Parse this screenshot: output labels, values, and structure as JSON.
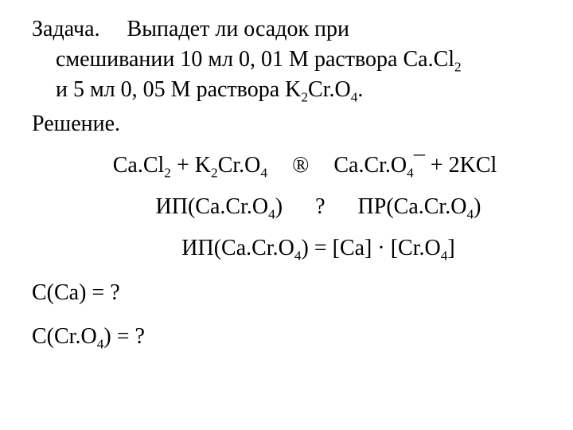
{
  "typography": {
    "font_family": "Times New Roman",
    "base_fontsize_pt": 21,
    "text_color": "#000000",
    "background_color": "#ffffff"
  },
  "problem": {
    "label": "Задача.",
    "line1_after_label": "Выпадет ли осадок при",
    "line2_a": "смешивании 10 мл 0, 01 М раствора Ca.Cl",
    "line2_sub": "2",
    "line3_a": "и 5 мл 0, 05 М раствора K",
    "line3_sub1": "2",
    "line3_b": "Cr.O",
    "line3_sub2": "4",
    "line3_c": "."
  },
  "solution_label": "Решение.",
  "eq1": {
    "lhs_a": "Ca.Cl",
    "lhs_a_sub": "2",
    "plus": " + ",
    "lhs_b": "K",
    "lhs_b_sub1": "2",
    "lhs_c": "Cr.O",
    "lhs_c_sub": "4",
    "arrow": "®",
    "rhs_a": "Ca.Cr.O",
    "rhs_a_sub": "4",
    "down": "¯",
    "plus2": " + 2KCl"
  },
  "eq2": {
    "left_label": "ИП(Ca.Cr.O",
    "left_sub": "4",
    "left_close": ")",
    "q": "?",
    "right_label": "ПР(Ca.Cr.O",
    "right_sub": "4",
    "right_close": ")"
  },
  "eq3": {
    "lhs": "ИП(Ca.Cr.O",
    "lhs_sub": "4",
    "lhs_close": ") = [Ca] · [Cr.O",
    "rhs_sub": "4",
    "rhs_close": "]"
  },
  "eq4": "C(Ca) = ?",
  "eq5": {
    "a": "C(Cr.O",
    "sub": "4",
    "b": ") = ?"
  }
}
